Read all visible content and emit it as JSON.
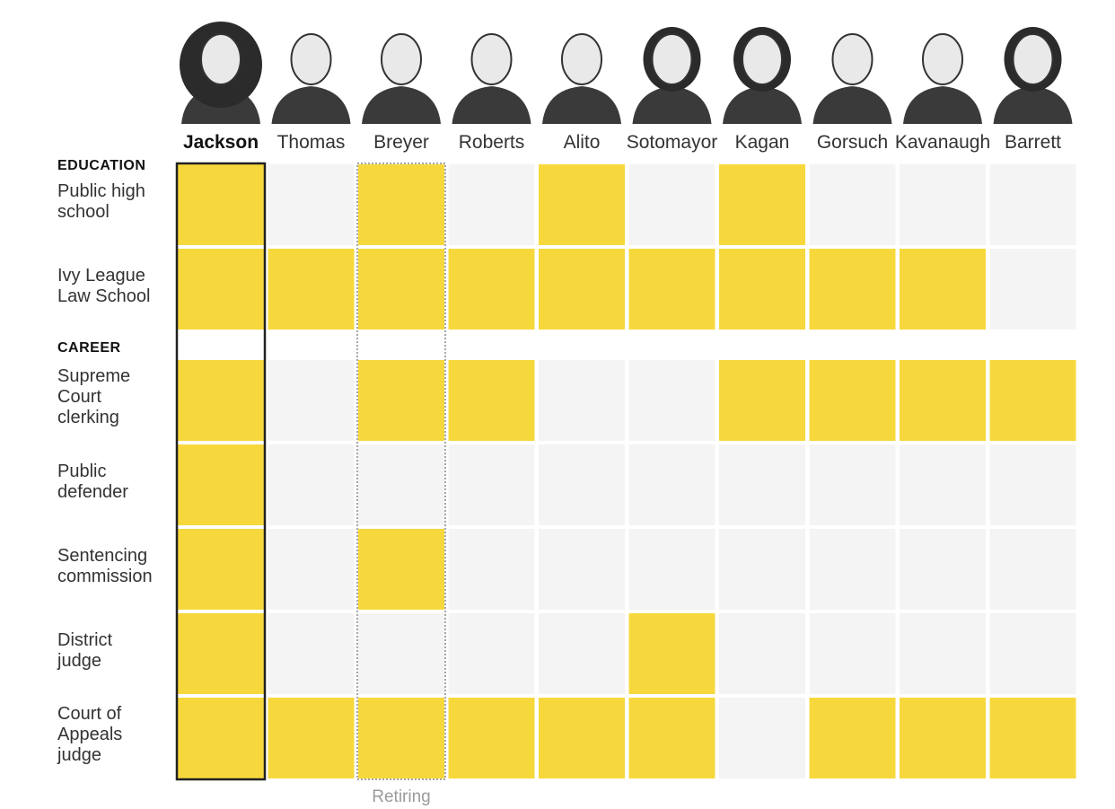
{
  "chart_data": {
    "type": "table",
    "title": "",
    "justices": [
      "Jackson",
      "Thomas",
      "Breyer",
      "Roberts",
      "Alito",
      "Sotomayor",
      "Kagan",
      "Gorsuch",
      "Kavanaugh",
      "Barrett"
    ],
    "highlighted_justice": "Jackson",
    "retiring_justice": "Breyer",
    "retiring_label": "Retiring",
    "sections": [
      {
        "heading": "EDUCATION",
        "rows": [
          {
            "label": [
              "Public high",
              "school"
            ],
            "values": [
              1,
              0,
              1,
              0,
              1,
              0,
              1,
              0,
              0,
              0
            ]
          },
          {
            "label": [
              "Ivy League",
              "Law School"
            ],
            "values": [
              1,
              1,
              1,
              1,
              1,
              1,
              1,
              1,
              1,
              0
            ]
          }
        ]
      },
      {
        "heading": "CAREER",
        "rows": [
          {
            "label": [
              "Supreme",
              "Court",
              "clerking"
            ],
            "values": [
              1,
              0,
              1,
              1,
              0,
              0,
              1,
              1,
              1,
              1
            ]
          },
          {
            "label": [
              "Public",
              "defender"
            ],
            "values": [
              1,
              0,
              0,
              0,
              0,
              0,
              0,
              0,
              0,
              0
            ]
          },
          {
            "label": [
              "Sentencing",
              "commission"
            ],
            "values": [
              1,
              0,
              1,
              0,
              0,
              0,
              0,
              0,
              0,
              0
            ]
          },
          {
            "label": [
              "District",
              "judge"
            ],
            "values": [
              1,
              0,
              0,
              0,
              0,
              1,
              0,
              0,
              0,
              0
            ]
          },
          {
            "label": [
              "Court of",
              "Appeals",
              "judge"
            ],
            "values": [
              1,
              1,
              1,
              1,
              1,
              1,
              0,
              1,
              1,
              1
            ]
          }
        ]
      }
    ],
    "colors": {
      "yes": "#f7d83c",
      "no": "#f4f4f4",
      "frame": "#222222",
      "retiring_frame": "#888888"
    }
  }
}
